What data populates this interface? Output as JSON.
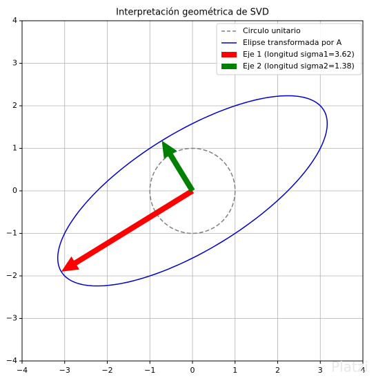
{
  "chart_data": {
    "type": "svd",
    "title": "Interpretación geométrica de SVD",
    "xlim": [
      -4,
      4
    ],
    "ylim": [
      -4,
      4
    ],
    "xticks": [
      {
        "value": -4,
        "label": "−4"
      },
      {
        "value": -3,
        "label": "−3"
      },
      {
        "value": -2,
        "label": "−2"
      },
      {
        "value": -1,
        "label": "−1"
      },
      0,
      1,
      2,
      3,
      4
    ],
    "yticks": [
      {
        "value": -4,
        "label": "−4"
      },
      {
        "value": -3,
        "label": "−3"
      },
      {
        "value": -2,
        "label": "−2"
      },
      {
        "value": -1,
        "label": "−1"
      },
      0,
      1,
      2,
      3,
      4
    ],
    "grid": true,
    "legend": "upper right",
    "series": [
      {
        "name": "Circulo unitario",
        "kind": "circle",
        "color": "#808080",
        "dashed": true,
        "radius": 1
      },
      {
        "name": "Elipse transformada por A",
        "kind": "ellipse",
        "color": "#0000cc"
      },
      {
        "name": "Eje 1 (longitud sigma1=3.62)",
        "kind": "arrow",
        "color": "#ff0000",
        "dx": -3.08,
        "dy": -1.9
      },
      {
        "name": "Eje 2 (longitud sigma2=1.38)",
        "kind": "arrow",
        "color": "#008000",
        "dx": -0.72,
        "dy": 1.18
      }
    ],
    "watermark": "Platzi"
  }
}
